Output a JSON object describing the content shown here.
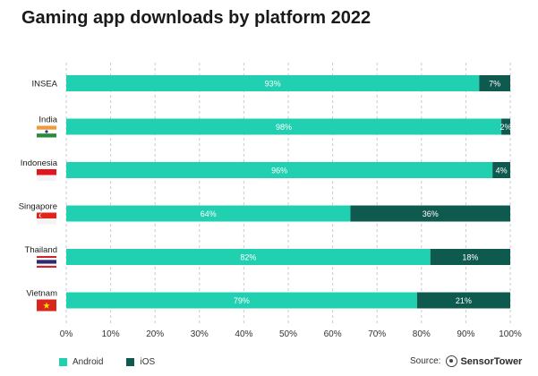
{
  "title": "Gaming app downloads by platform 2022",
  "chart_data": {
    "type": "bar",
    "orientation": "horizontal",
    "stacked": true,
    "categories": [
      "INSEA",
      "India",
      "Indonesia",
      "Singapore",
      "Thailand",
      "Vietnam"
    ],
    "series": [
      {
        "name": "Android",
        "values": [
          93,
          98,
          96,
          64,
          82,
          79
        ],
        "color": "#21d0b0",
        "labels": [
          "93%",
          "98%",
          "96%",
          "64%",
          "82%",
          "79%"
        ]
      },
      {
        "name": "iOS",
        "values": [
          7,
          2,
          4,
          36,
          18,
          21
        ],
        "color": "#0f5a4e",
        "labels": [
          "7%",
          "2%",
          "4%",
          "36%",
          "18%",
          "21%"
        ]
      }
    ],
    "xlim": [
      0,
      100
    ],
    "x_ticks": [
      "0%",
      "10%",
      "20%",
      "30%",
      "40%",
      "50%",
      "60%",
      "70%",
      "80%",
      "90%",
      "100%"
    ],
    "grid": "vertical dashed",
    "legend": "bottom-left"
  },
  "flags": [
    "",
    "india-flag-icon",
    "indonesia-flag-icon",
    "singapore-flag-icon",
    "thailand-flag-icon",
    "vietnam-flag-icon"
  ],
  "source": {
    "label": "Source:",
    "brand": "SensorTower"
  }
}
